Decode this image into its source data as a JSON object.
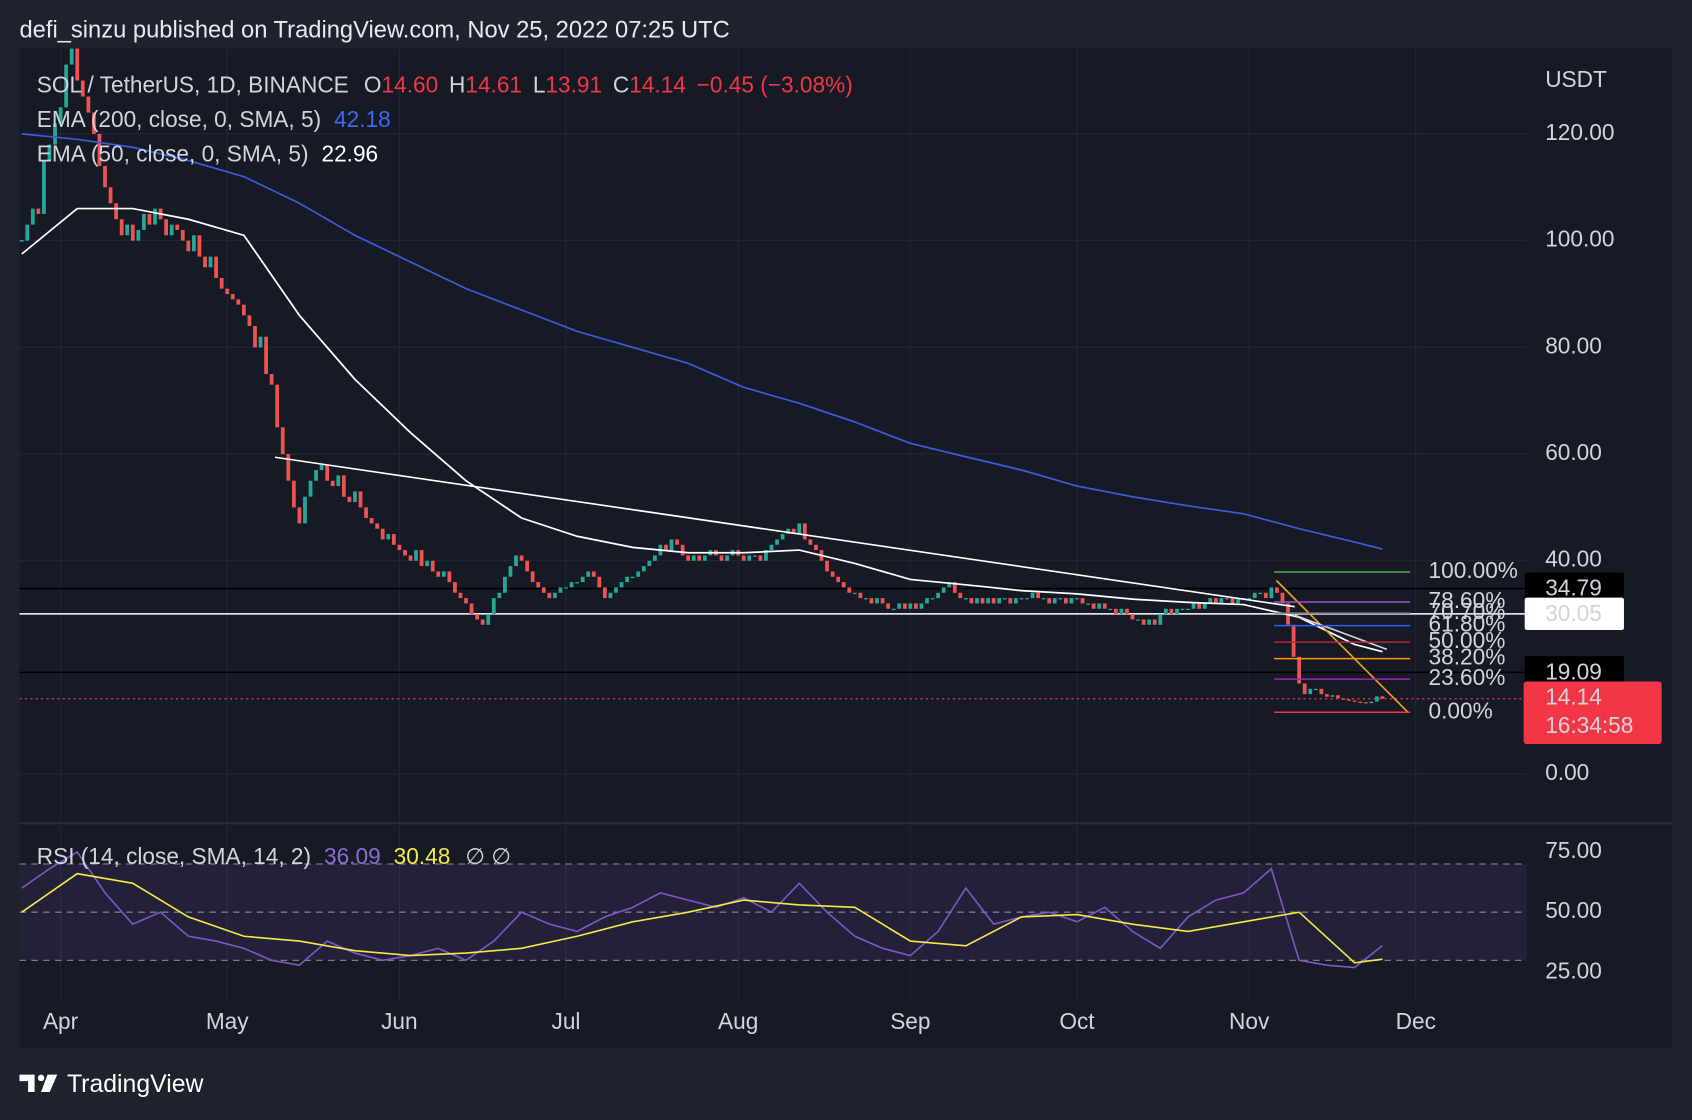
{
  "header": {
    "title": "defi_sinzu published on TradingView.com, Nov 25, 2022 07:25 UTC"
  },
  "footer": {
    "brand": "TradingView"
  },
  "chart_data": [
    {
      "type": "candlestick",
      "symbol": "SOL / TetherUS, 1D, BINANCE",
      "ohlc": [
        {
          "key": "O",
          "value": 14.6,
          "label": "14.60"
        },
        {
          "key": "H",
          "value": 14.61,
          "label": "14.61"
        },
        {
          "key": "L",
          "value": 13.91,
          "label": "13.91"
        },
        {
          "key": "C",
          "value": 14.14,
          "label": "14.14"
        }
      ],
      "change": "−0.45 (−3.08%)",
      "currency": "USDT",
      "up_color": "#26a69a",
      "down_color": "#ef5350",
      "grid": true,
      "values": [
        100,
        103,
        106,
        105,
        115,
        118,
        122,
        125,
        133,
        136,
        130,
        127,
        124,
        120,
        114,
        110,
        107,
        104,
        101,
        103,
        100,
        102,
        105,
        103,
        106,
        104,
        101,
        103,
        102,
        100,
        98,
        101,
        97,
        95,
        97,
        93,
        91,
        90,
        89,
        88,
        86,
        84,
        80,
        82,
        75,
        73,
        65,
        60,
        55,
        50,
        47,
        52,
        55,
        57,
        58,
        55,
        54,
        56,
        52,
        51,
        53,
        50,
        48,
        47,
        46,
        44,
        45,
        43,
        42,
        41,
        40,
        42,
        39,
        40,
        38,
        37,
        38,
        36,
        34,
        33,
        32,
        30,
        29,
        28,
        30,
        33,
        34,
        37,
        39,
        41,
        40,
        38,
        36,
        35,
        34,
        33,
        34,
        35,
        35,
        36,
        36,
        37,
        38,
        37,
        35,
        33,
        34,
        35,
        36,
        37,
        37,
        38,
        39,
        40,
        41,
        43,
        42,
        44,
        43,
        41,
        40,
        41,
        40,
        41,
        42,
        41,
        40,
        41,
        42,
        41,
        40,
        41,
        41,
        40,
        42,
        43,
        44,
        45,
        46,
        45,
        47,
        44,
        43,
        42,
        40,
        38,
        37,
        36,
        35,
        34,
        34,
        33,
        33,
        32,
        33,
        32,
        31,
        31,
        32,
        31,
        32,
        31,
        32,
        33,
        33,
        34,
        35,
        36,
        34,
        33,
        33,
        32,
        33,
        32,
        33,
        32,
        33,
        33,
        32,
        33,
        33,
        33,
        34,
        33,
        33,
        32,
        33,
        33,
        32,
        33,
        33,
        32,
        32,
        31,
        32,
        31,
        31,
        30,
        31,
        30,
        29,
        29,
        28,
        29,
        28,
        30,
        31,
        30,
        31,
        31,
        31,
        32,
        31,
        32,
        33,
        32,
        33,
        33,
        32,
        33,
        33,
        33,
        34,
        34,
        33,
        35,
        34,
        32,
        28,
        22,
        17,
        15,
        16,
        16,
        15,
        14.5,
        14.8,
        14.2,
        14,
        13.8,
        13.6,
        13.5,
        13.3,
        13.6,
        14.59,
        14.14
      ],
      "series": [
        {
          "name": "EMA (200, close, 0, SMA, 5)",
          "color": "#3b5bdb",
          "value": 42.18,
          "x": [
            0,
            10,
            20,
            30,
            40,
            50,
            60,
            70,
            80,
            90,
            100,
            110,
            120,
            130,
            140,
            150,
            160,
            170,
            180,
            190,
            200,
            210,
            220,
            230,
            240,
            245
          ],
          "values": [
            120,
            119,
            117.5,
            115,
            112,
            107,
            101,
            96,
            91,
            87,
            83,
            80,
            77,
            72.5,
            69.5,
            66,
            62,
            59.5,
            57,
            54,
            52,
            50.3,
            48.8,
            46,
            43.5,
            42.18
          ]
        },
        {
          "name": "EMA (50, close, 0, SMA, 5)",
          "color": "#ffffff",
          "value": 22.96,
          "x": [
            0,
            10,
            20,
            30,
            40,
            50,
            60,
            70,
            80,
            90,
            100,
            110,
            120,
            130,
            140,
            150,
            160,
            170,
            180,
            190,
            200,
            210,
            220,
            230,
            240,
            245
          ],
          "values": [
            97.5,
            106,
            106,
            104,
            101,
            86,
            74,
            64,
            55,
            48,
            44.6,
            42.5,
            41.5,
            41.5,
            42,
            39.5,
            36.5,
            35.5,
            34.4,
            33.8,
            32.8,
            32.2,
            31.8,
            29.4,
            24.3,
            22.96
          ]
        }
      ],
      "xlim": [
        -0.4,
        271
      ],
      "xticks": [
        {
          "value": 7,
          "label": "Apr"
        },
        {
          "value": 37,
          "label": "May"
        },
        {
          "value": 68,
          "label": "Jun"
        },
        {
          "value": 98,
          "label": "Jul"
        },
        {
          "value": 129,
          "label": "Aug"
        },
        {
          "value": 160,
          "label": "Sep"
        },
        {
          "value": 190,
          "label": "Oct"
        },
        {
          "value": 221,
          "label": "Nov"
        },
        {
          "value": 251,
          "label": "Dec"
        }
      ],
      "ylim": [
        -9,
        136
      ],
      "yticks": [
        {
          "value": 0,
          "label": "0.00"
        },
        {
          "value": 40,
          "label": "40.00"
        },
        {
          "value": 60,
          "label": "60.00"
        },
        {
          "value": 80,
          "label": "80.00"
        },
        {
          "value": 100,
          "label": "100.00"
        },
        {
          "value": 120,
          "label": "120.00"
        }
      ],
      "price_lines": [
        {
          "value": 34.79,
          "color": "#000000",
          "text_color": "#ffffff"
        },
        {
          "value": 30.05,
          "color": "#ffffff",
          "text_color": "#000000"
        },
        {
          "value": 19.09,
          "color": "#000000",
          "text_color": "#ffffff"
        }
      ],
      "last_price": {
        "value": 14.14,
        "countdown": "16:34:58",
        "color": "#f23645"
      },
      "fib": {
        "x": [
          225.5,
          250
        ],
        "levels": [
          {
            "label": "100.00%",
            "value": 37.9,
            "color": "#4caf50"
          },
          {
            "label": "78.60%",
            "value": 32.27,
            "color": "#9c4fd6"
          },
          {
            "label": "70.70%",
            "value": 30.19,
            "color": "#787b86"
          },
          {
            "label": "61.80%",
            "value": 27.85,
            "color": "#2962ff"
          },
          {
            "label": "50.00%",
            "value": 24.75,
            "color": "#b22833"
          },
          {
            "label": "38.20%",
            "value": 21.65,
            "color": "#ff9800"
          },
          {
            "label": "23.60%",
            "value": 17.81,
            "color": "#9c27b0"
          },
          {
            "label": "0.00%",
            "value": 11.6,
            "color": "#f23645"
          }
        ]
      },
      "trendlines": [
        {
          "color": "#ffffff",
          "x": [
            45.6,
            229.2
          ],
          "values": [
            59.4,
            31.4
          ]
        },
        {
          "color": "#f7a21b",
          "x": [
            225.9,
            249.6
          ],
          "values": [
            36.3,
            11.6
          ]
        },
        {
          "color": "#d1d4dc",
          "x": [
            229.2,
            245.8
          ],
          "values": [
            29.8,
            23.4
          ]
        }
      ]
    },
    {
      "type": "line",
      "title": "RSI (14, close, SMA, 14, 2)",
      "extra": "∅ ∅",
      "series": [
        {
          "color": "#7e57c2",
          "value": 36.09,
          "x": [
            0,
            5,
            10,
            15,
            20,
            25,
            30,
            35,
            40,
            45,
            50,
            55,
            60,
            65,
            70,
            75,
            80,
            85,
            90,
            95,
            100,
            105,
            110,
            115,
            120,
            125,
            130,
            135,
            140,
            145,
            150,
            155,
            160,
            165,
            170,
            175,
            180,
            185,
            190,
            195,
            200,
            205,
            210,
            215,
            220,
            225,
            230,
            235,
            240,
            245
          ],
          "values": [
            60,
            68,
            75,
            58,
            45,
            50,
            40,
            38,
            35,
            30,
            28,
            38,
            33,
            30,
            32,
            35,
            30,
            38,
            50,
            45,
            42,
            48,
            52,
            58,
            55,
            52,
            56,
            50,
            62,
            50,
            40,
            35,
            32,
            42,
            60,
            45,
            48,
            50,
            46,
            52,
            42,
            35,
            48,
            55,
            58,
            68,
            30,
            28,
            27,
            36.09
          ]
        },
        {
          "color": "#f5e94a",
          "value": 30.48,
          "x": [
            0,
            10,
            20,
            30,
            40,
            50,
            60,
            70,
            80,
            90,
            100,
            110,
            120,
            130,
            140,
            150,
            160,
            170,
            180,
            190,
            200,
            210,
            220,
            230,
            240,
            245
          ],
          "values": [
            50,
            66,
            62,
            48,
            40,
            38,
            34,
            32,
            33,
            35,
            40,
            46,
            50,
            55,
            53,
            52,
            38,
            36,
            48,
            49,
            45,
            42,
            46,
            50,
            29,
            30.48
          ]
        }
      ],
      "xlim": [
        -0.4,
        271
      ],
      "ylim": [
        13,
        86
      ],
      "yticks": [
        {
          "value": 25,
          "label": "25.00"
        },
        {
          "value": 50,
          "label": "50.00"
        },
        {
          "value": 75,
          "label": "75.00"
        }
      ],
      "band": [
        30,
        70
      ],
      "band_color": "#7e57c2",
      "dashed_levels": [
        30,
        50,
        70
      ]
    }
  ]
}
